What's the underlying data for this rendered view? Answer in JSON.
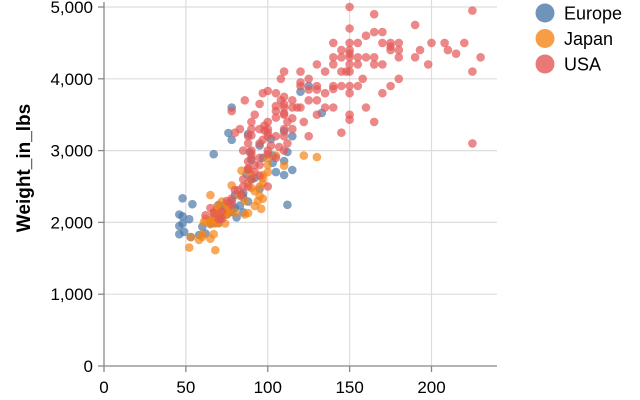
{
  "chart_data": {
    "type": "scatter",
    "xlabel": "",
    "ylabel": "Weight_in_lbs",
    "xlim": [
      0,
      240
    ],
    "ylim": [
      0,
      5000
    ],
    "x_ticks": [
      0,
      50,
      100,
      150,
      200
    ],
    "y_ticks": [
      0,
      1000,
      2000,
      3000,
      4000,
      5000
    ],
    "x_tick_labels": [
      "0",
      "50",
      "100",
      "150",
      "200"
    ],
    "y_tick_labels": [
      "0",
      "1,000",
      "2,000",
      "3,000",
      "4,000",
      "5,000"
    ],
    "grid": true,
    "legend_position": "top-right",
    "series": [
      {
        "name": "Europe",
        "color": "#4c78a8",
        "points": [
          [
            46,
            1835
          ],
          [
            46,
            1950
          ],
          [
            46,
            2110
          ],
          [
            48,
            2335
          ],
          [
            48,
            1985
          ],
          [
            48,
            2085
          ],
          [
            49,
            1867
          ],
          [
            52,
            2045
          ],
          [
            53,
            1795
          ],
          [
            54,
            2254
          ],
          [
            58,
            1825
          ],
          [
            60,
            1940
          ],
          [
            62,
            1845
          ],
          [
            65,
            1985
          ],
          [
            67,
            1995
          ],
          [
            67,
            2065
          ],
          [
            67,
            2950
          ],
          [
            69,
            2130
          ],
          [
            70,
            2245
          ],
          [
            70,
            1990
          ],
          [
            71,
            2223
          ],
          [
            71,
            2040
          ],
          [
            72,
            2100
          ],
          [
            74,
            2200
          ],
          [
            75,
            2110
          ],
          [
            76,
            2144
          ],
          [
            76,
            2265
          ],
          [
            76,
            3245
          ],
          [
            78,
            2188
          ],
          [
            78,
            2144
          ],
          [
            78,
            3150
          ],
          [
            78,
            3600
          ],
          [
            80,
            2200
          ],
          [
            80,
            2380
          ],
          [
            81,
            2070
          ],
          [
            84,
            2380
          ],
          [
            85,
            2350
          ],
          [
            85,
            2408
          ],
          [
            87,
            2672
          ],
          [
            88,
            2290
          ],
          [
            88,
            3230
          ],
          [
            90,
            2600
          ],
          [
            90,
            2868
          ],
          [
            95,
            3070
          ],
          [
            95,
            2465
          ],
          [
            97,
            2900
          ],
          [
            102,
            3160
          ],
          [
            103,
            2830
          ],
          [
            103,
            2933
          ],
          [
            105,
            2700
          ],
          [
            110,
            2660
          ],
          [
            110,
            2855
          ],
          [
            112,
            2245
          ],
          [
            112,
            2980
          ],
          [
            115,
            2730
          ],
          [
            120,
            3820
          ],
          [
            125,
            3900
          ],
          [
            133,
            3525
          ],
          [
            110,
            3270
          ],
          [
            115,
            3200
          ],
          [
            85,
            2140
          ],
          [
            83,
            2234
          ],
          [
            92,
            2620
          ],
          [
            89,
            2980
          ],
          [
            78,
            2300
          ]
        ]
      },
      {
        "name": "Japan",
        "color": "#f58518",
        "points": [
          [
            52,
            1649
          ],
          [
            53,
            1795
          ],
          [
            58,
            1755
          ],
          [
            60,
            1800
          ],
          [
            60,
            1834
          ],
          [
            61,
            2003
          ],
          [
            62,
            2050
          ],
          [
            65,
            1773
          ],
          [
            65,
            1975
          ],
          [
            65,
            2019
          ],
          [
            65,
            2380
          ],
          [
            67,
            1836
          ],
          [
            67,
            2035
          ],
          [
            67,
            2145
          ],
          [
            68,
            2155
          ],
          [
            68,
            1985
          ],
          [
            69,
            2220
          ],
          [
            70,
            1990
          ],
          [
            70,
            2200
          ],
          [
            70,
            2070
          ],
          [
            72,
            2290
          ],
          [
            75,
            2265
          ],
          [
            75,
            2125
          ],
          [
            75,
            2108
          ],
          [
            75,
            2230
          ],
          [
            75,
            2145
          ],
          [
            77,
            2190
          ],
          [
            78,
            2515
          ],
          [
            80,
            2135
          ],
          [
            83,
            2370
          ],
          [
            84,
            2720
          ],
          [
            86,
            2110
          ],
          [
            88,
            2130
          ],
          [
            88,
            2720
          ],
          [
            90,
            2670
          ],
          [
            92,
            2434
          ],
          [
            94,
            2300
          ],
          [
            95,
            2370
          ],
          [
            96,
            2189
          ],
          [
            97,
            2330
          ],
          [
            97,
            2545
          ],
          [
            97,
            2615
          ],
          [
            100,
            2800
          ],
          [
            100,
            2700
          ],
          [
            105,
            2930
          ],
          [
            110,
            2790
          ],
          [
            122,
            2930
          ],
          [
            130,
            2910
          ],
          [
            86,
            2300
          ],
          [
            88,
            2550
          ],
          [
            72,
            2100
          ],
          [
            74,
            1985
          ],
          [
            68,
            1613
          ],
          [
            65,
            2025
          ],
          [
            70,
            2125
          ],
          [
            90,
            2480
          ],
          [
            95,
            2500
          ],
          [
            97,
            2660
          ],
          [
            92,
            2230
          ],
          [
            100,
            2900
          ]
        ]
      },
      {
        "name": "USA",
        "color": "#e45756",
        "points": [
          [
            62,
            2100
          ],
          [
            65,
            2200
          ],
          [
            67,
            2130
          ],
          [
            70,
            2050
          ],
          [
            72,
            2150
          ],
          [
            75,
            2300
          ],
          [
            78,
            2330
          ],
          [
            80,
            2450
          ],
          [
            84,
            2385
          ],
          [
            85,
            2500
          ],
          [
            85,
            2600
          ],
          [
            88,
            2740
          ],
          [
            88,
            2750
          ],
          [
            90,
            2900
          ],
          [
            90,
            2950
          ],
          [
            90,
            3000
          ],
          [
            90,
            3400
          ],
          [
            92,
            2700
          ],
          [
            95,
            2800
          ],
          [
            95,
            3100
          ],
          [
            97,
            3150
          ],
          [
            98,
            3280
          ],
          [
            100,
            3200
          ],
          [
            100,
            3400
          ],
          [
            100,
            2950
          ],
          [
            100,
            3250
          ],
          [
            105,
            3460
          ],
          [
            105,
            3550
          ],
          [
            105,
            3620
          ],
          [
            108,
            3700
          ],
          [
            110,
            3645
          ],
          [
            110,
            3520
          ],
          [
            110,
            3300
          ],
          [
            110,
            3500
          ],
          [
            110,
            3750
          ],
          [
            110,
            4100
          ],
          [
            112,
            3400
          ],
          [
            115,
            3700
          ],
          [
            115,
            3450
          ],
          [
            120,
            3900
          ],
          [
            120,
            4100
          ],
          [
            125,
            3850
          ],
          [
            125,
            4000
          ],
          [
            130,
            3500
          ],
          [
            130,
            3700
          ],
          [
            130,
            3900
          ],
          [
            130,
            4200
          ],
          [
            135,
            3800
          ],
          [
            135,
            4100
          ],
          [
            140,
            4300
          ],
          [
            140,
            3900
          ],
          [
            140,
            3600
          ],
          [
            140,
            4200
          ],
          [
            145,
            3900
          ],
          [
            145,
            4400
          ],
          [
            145,
            4300
          ],
          [
            148,
            4100
          ],
          [
            150,
            4500
          ],
          [
            150,
            4300
          ],
          [
            150,
            3500
          ],
          [
            150,
            4100
          ],
          [
            150,
            4200
          ],
          [
            150,
            3900
          ],
          [
            150,
            4700
          ],
          [
            150,
            5000
          ],
          [
            150,
            3430
          ],
          [
            155,
            4200
          ],
          [
            155,
            4500
          ],
          [
            158,
            4000
          ],
          [
            160,
            4300
          ],
          [
            160,
            3600
          ],
          [
            165,
            4200
          ],
          [
            165,
            4900
          ],
          [
            165,
            3400
          ],
          [
            170,
            4200
          ],
          [
            170,
            4650
          ],
          [
            170,
            3800
          ],
          [
            175,
            4400
          ],
          [
            175,
            3900
          ],
          [
            180,
            4500
          ],
          [
            180,
            4400
          ],
          [
            180,
            4000
          ],
          [
            190,
            4300
          ],
          [
            190,
            4750
          ],
          [
            193,
            4400
          ],
          [
            198,
            4200
          ],
          [
            200,
            4500
          ],
          [
            208,
            4500
          ],
          [
            210,
            4400
          ],
          [
            215,
            4350
          ],
          [
            220,
            4500
          ],
          [
            225,
            4950
          ],
          [
            225,
            4100
          ],
          [
            225,
            3100
          ],
          [
            230,
            4300
          ],
          [
            85,
            3000
          ],
          [
            88,
            3100
          ],
          [
            90,
            3300
          ],
          [
            92,
            3500
          ],
          [
            95,
            2900
          ],
          [
            98,
            3350
          ],
          [
            100,
            3000
          ],
          [
            102,
            3070
          ],
          [
            105,
            3200
          ],
          [
            107,
            3050
          ],
          [
            110,
            3600
          ],
          [
            112,
            3100
          ],
          [
            115,
            3300
          ],
          [
            118,
            3600
          ],
          [
            120,
            3600
          ],
          [
            122,
            3400
          ],
          [
            125,
            3200
          ],
          [
            80,
            3250
          ],
          [
            78,
            3550
          ],
          [
            83,
            3300
          ],
          [
            86,
            3700
          ],
          [
            88,
            3200
          ],
          [
            95,
            3650
          ],
          [
            97,
            3800
          ],
          [
            100,
            3830
          ],
          [
            105,
            3800
          ],
          [
            108,
            4000
          ],
          [
            115,
            3600
          ],
          [
            100,
            2500
          ],
          [
            90,
            2600
          ],
          [
            95,
            2650
          ],
          [
            92,
            2800
          ],
          [
            88,
            2500
          ],
          [
            82,
            2450
          ],
          [
            78,
            2250
          ],
          [
            72,
            2050
          ],
          [
            88,
            2850
          ],
          [
            95,
            3300
          ],
          [
            100,
            3300
          ],
          [
            110,
            3000
          ],
          [
            140,
            4500
          ],
          [
            145,
            4100
          ],
          [
            150,
            4400
          ],
          [
            155,
            4300
          ],
          [
            160,
            4600
          ],
          [
            165,
            4650
          ],
          [
            170,
            4500
          ],
          [
            175,
            4450
          ],
          [
            180,
            4300
          ],
          [
            165,
            4300
          ],
          [
            150,
            3800
          ],
          [
            140,
            3860
          ],
          [
            135,
            3600
          ],
          [
            130,
            3850
          ],
          [
            125,
            3700
          ],
          [
            155,
            3900
          ],
          [
            145,
            3250
          ],
          [
            175,
            4500
          ],
          [
            150,
            4350
          ],
          [
            120,
            3950
          ],
          [
            110,
            3200
          ],
          [
            105,
            2900
          ],
          [
            90,
            3210
          ]
        ]
      }
    ]
  }
}
